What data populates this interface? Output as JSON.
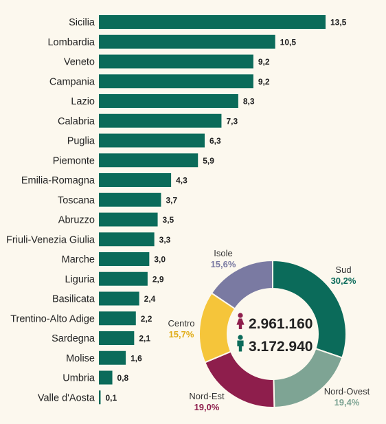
{
  "colors": {
    "bar": "#0b6b5a",
    "background": "#fcf8ee",
    "text": "#222222",
    "female_icon": "#8e1e4c",
    "male_icon": "#0b6b5a"
  },
  "chart_data": [
    {
      "type": "bar",
      "orientation": "horizontal",
      "categories": [
        "Sicilia",
        "Lombardia",
        "Veneto",
        "Campania",
        "Lazio",
        "Calabria",
        "Puglia",
        "Piemonte",
        "Emilia-Romagna",
        "Toscana",
        "Abruzzo",
        "Friuli-Venezia Giulia",
        "Marche",
        "Liguria",
        "Basilicata",
        "Trentino-Alto Adige",
        "Sardegna",
        "Molise",
        "Umbria",
        "Valle d'Aosta"
      ],
      "values": [
        13.5,
        10.5,
        9.2,
        9.2,
        8.3,
        7.3,
        6.3,
        5.9,
        4.3,
        3.7,
        3.5,
        3.3,
        3.0,
        2.9,
        2.4,
        2.2,
        2.1,
        1.6,
        0.8,
        0.1
      ],
      "value_labels": [
        "13,5",
        "10,5",
        "9,2",
        "9,2",
        "8,3",
        "7,3",
        "6,3",
        "5,9",
        "4,3",
        "3,7",
        "3,5",
        "3,3",
        "3,0",
        "2,9",
        "2,4",
        "2,2",
        "2,1",
        "1,6",
        "0,8",
        "0,1"
      ],
      "xlim": [
        0,
        13.5
      ],
      "grid": false,
      "axes_visible": false
    },
    {
      "type": "pie",
      "donut": true,
      "slices": [
        {
          "label": "Sud",
          "value": 30.2,
          "pct_label": "30,2%",
          "color": "#0b6b5a"
        },
        {
          "label": "Nord-Ovest",
          "value": 19.4,
          "pct_label": "19,4%",
          "color": "#7ea494"
        },
        {
          "label": "Nord-Est",
          "value": 19.0,
          "pct_label": "19,0%",
          "color": "#8e1e4c"
        },
        {
          "label": "Centro",
          "value": 15.7,
          "pct_label": "15,7%",
          "color": "#f5c53a"
        },
        {
          "label": "Isole",
          "value": 15.6,
          "pct_label": "15,6%",
          "color": "#7a7aa2"
        }
      ],
      "center": {
        "female_total": "2.961.160",
        "male_total": "3.172.940",
        "female_icon": "female-icon",
        "male_icon": "male-icon"
      }
    }
  ]
}
